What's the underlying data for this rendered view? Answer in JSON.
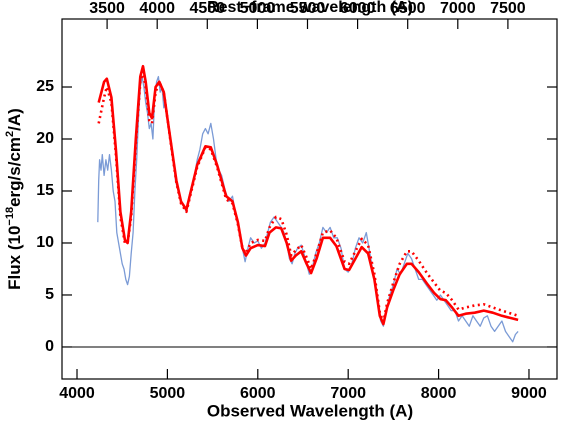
{
  "chart_data": {
    "type": "line",
    "xlabel": "Observed Wavelength (A)",
    "x2label": "Rest−frame wavelength (A)",
    "ylabel_parts": [
      "Flux (10",
      "−18",
      "erg/s/cm",
      "2",
      "/A)"
    ],
    "xlim": [
      3834,
      9310
    ],
    "xticks": [
      4000,
      5000,
      6000,
      7000,
      8000,
      9000
    ],
    "x2lim": [
      3050,
      7990
    ],
    "x2ticks": [
      3500,
      4000,
      4500,
      5000,
      5500,
      6000,
      6500,
      7000,
      7500
    ],
    "ylim": [
      -3.08,
      31.54
    ],
    "yticks": [
      0,
      5,
      10,
      15,
      20,
      25
    ],
    "hline": 0,
    "series": [
      {
        "color": "#7b9bd6",
        "style": "solid",
        "width": 1.3,
        "x": [
          4230,
          4240,
          4250,
          4265,
          4280,
          4300,
          4320,
          4340,
          4360,
          4380,
          4400,
          4420,
          4440,
          4460,
          4480,
          4500,
          4520,
          4540,
          4560,
          4580,
          4600,
          4620,
          4640,
          4660,
          4680,
          4700,
          4720,
          4740,
          4760,
          4780,
          4800,
          4820,
          4840,
          4860,
          4880,
          4900,
          4920,
          4940,
          4960,
          4980,
          5000,
          5030,
          5060,
          5090,
          5120,
          5150,
          5180,
          5210,
          5240,
          5270,
          5300,
          5330,
          5360,
          5390,
          5420,
          5450,
          5480,
          5510,
          5540,
          5570,
          5600,
          5640,
          5680,
          5720,
          5760,
          5800,
          5830,
          5860,
          5890,
          5920,
          5960,
          6000,
          6040,
          6080,
          6110,
          6140,
          6180,
          6220,
          6260,
          6290,
          6320,
          6350,
          6380,
          6410,
          6440,
          6480,
          6510,
          6540,
          6570,
          6600,
          6640,
          6680,
          6720,
          6760,
          6800,
          6840,
          6880,
          6920,
          6960,
          7000,
          7040,
          7080,
          7120,
          7160,
          7200,
          7240,
          7280,
          7320,
          7360,
          7390,
          7420,
          7460,
          7500,
          7540,
          7580,
          7620,
          7660,
          7700,
          7740,
          7780,
          7820,
          7860,
          7900,
          7940,
          7980,
          8020,
          8060,
          8100,
          8140,
          8180,
          8220,
          8260,
          8300,
          8340,
          8380,
          8420,
          8460,
          8500,
          8540,
          8580,
          8620,
          8660,
          8700,
          8740,
          8780,
          8820,
          8850,
          8880
        ],
        "values": [
          12,
          16,
          18,
          17,
          18.5,
          16.5,
          18,
          17,
          18.5,
          17,
          15,
          14,
          11,
          10,
          9,
          8,
          7.5,
          6.5,
          6,
          6.8,
          9,
          11,
          15,
          18,
          22,
          25,
          26,
          25,
          23.5,
          22.5,
          21,
          21.5,
          20,
          24,
          25.5,
          26,
          24.5,
          25,
          23,
          23.5,
          22,
          20,
          18.5,
          16,
          15,
          14,
          13.5,
          13,
          14.5,
          15.5,
          16.5,
          18,
          19,
          20.5,
          21,
          20.5,
          21.5,
          20,
          18,
          17,
          16.5,
          15,
          14,
          14.5,
          12.5,
          11,
          9.5,
          8.2,
          9.5,
          10.5,
          10,
          10.2,
          9.5,
          10,
          11,
          12,
          12.5,
          12,
          11.5,
          11,
          10,
          8.5,
          8,
          9,
          9.5,
          9.8,
          9,
          8,
          7,
          7.5,
          9,
          10,
          11.5,
          11,
          11.5,
          10.5,
          10.5,
          9.5,
          7.5,
          7.2,
          8,
          9.5,
          10.5,
          10,
          11,
          9,
          7,
          4.5,
          2.5,
          2,
          3.5,
          5,
          6,
          7.5,
          7,
          8,
          9,
          8.5,
          7.5,
          6.5,
          6.5,
          6,
          5.5,
          5,
          4.5,
          5,
          4.5,
          4,
          3.5,
          3.5,
          2.5,
          3,
          2.5,
          2,
          3,
          2.5,
          2,
          2.8,
          3,
          2,
          1.5,
          2,
          2.5,
          1.5,
          1,
          0.5,
          1.2,
          1.5
        ]
      },
      {
        "color": "#ff0000",
        "style": "solid",
        "width": 2.6,
        "x": [
          4240,
          4300,
          4330,
          4380,
          4430,
          4480,
          4530,
          4560,
          4600,
          4650,
          4700,
          4730,
          4760,
          4800,
          4830,
          4870,
          4910,
          4960,
          5000,
          5050,
          5100,
          5150,
          5210,
          5260,
          5330,
          5420,
          5480,
          5550,
          5650,
          5720,
          5780,
          5830,
          5870,
          5920,
          6000,
          6080,
          6130,
          6200,
          6260,
          6320,
          6370,
          6420,
          6480,
          6540,
          6590,
          6650,
          6720,
          6800,
          6870,
          6960,
          7010,
          7080,
          7150,
          7220,
          7290,
          7350,
          7390,
          7430,
          7500,
          7570,
          7650,
          7700,
          7780,
          7880,
          7950,
          8020,
          8080,
          8150,
          8220,
          8300,
          8400,
          8500,
          8600,
          8700,
          8880
        ],
        "values": [
          23.5,
          25.5,
          25.8,
          24,
          19,
          13,
          10.3,
          10,
          13,
          20,
          26,
          27,
          25.5,
          22.5,
          22,
          25,
          25.5,
          24.5,
          22,
          19,
          16,
          14,
          13.2,
          15,
          17.5,
          19.3,
          19.2,
          17.5,
          14.5,
          14,
          12,
          9.5,
          8.8,
          9.5,
          9.8,
          9.7,
          11,
          11.5,
          11.4,
          10,
          8.3,
          8.8,
          9.2,
          8,
          7.1,
          8.5,
          10.5,
          10.5,
          9.7,
          7.5,
          7.4,
          8.5,
          9.6,
          9,
          6.5,
          3,
          2.2,
          3.8,
          5.5,
          7,
          8,
          8,
          7.2,
          6,
          5.2,
          4.6,
          4.5,
          3.8,
          3,
          3.2,
          3.3,
          3.5,
          3.3,
          3,
          2.6
        ]
      },
      {
        "color": "#ff0000",
        "style": "dotted",
        "width": 2.6,
        "x": [
          4240,
          4300,
          4330,
          4380,
          4430,
          4480,
          4530,
          4560,
          4600,
          4650,
          4700,
          4730,
          4760,
          4800,
          4830,
          4870,
          4910,
          4960,
          5000,
          5050,
          5100,
          5150,
          5210,
          5260,
          5330,
          5420,
          5480,
          5550,
          5650,
          5720,
          5780,
          5830,
          5870,
          5920,
          6000,
          6080,
          6130,
          6200,
          6260,
          6320,
          6370,
          6420,
          6480,
          6540,
          6590,
          6650,
          6720,
          6800,
          6870,
          6960,
          7010,
          7080,
          7150,
          7220,
          7290,
          7350,
          7390,
          7430,
          7500,
          7570,
          7650,
          7700,
          7780,
          7880,
          7950,
          8020,
          8080,
          8150,
          8220,
          8300,
          8400,
          8500,
          8600,
          8700,
          8880
        ],
        "values": [
          21.5,
          24,
          25,
          23.5,
          18.5,
          12.5,
          10,
          10,
          12.5,
          19.5,
          25.5,
          26.5,
          25,
          21.8,
          21.5,
          24.5,
          25.5,
          24.5,
          22,
          18.8,
          15.8,
          13.8,
          13,
          14.8,
          17.3,
          19.2,
          19,
          17.3,
          14.2,
          13.8,
          11.8,
          9.5,
          9,
          10,
          10.3,
          10.2,
          11.5,
          12.5,
          12.3,
          10.8,
          8.8,
          9.3,
          9.8,
          8.6,
          7.5,
          9,
          11,
          11.2,
          10.5,
          8.2,
          8,
          9.2,
          10.4,
          9.8,
          7,
          3.3,
          2.4,
          4.2,
          6.2,
          8,
          9.2,
          9.2,
          8.3,
          7,
          6.2,
          5.4,
          5.2,
          4.5,
          3.6,
          3.8,
          4,
          4.1,
          3.8,
          3.5,
          3
        ]
      }
    ]
  }
}
